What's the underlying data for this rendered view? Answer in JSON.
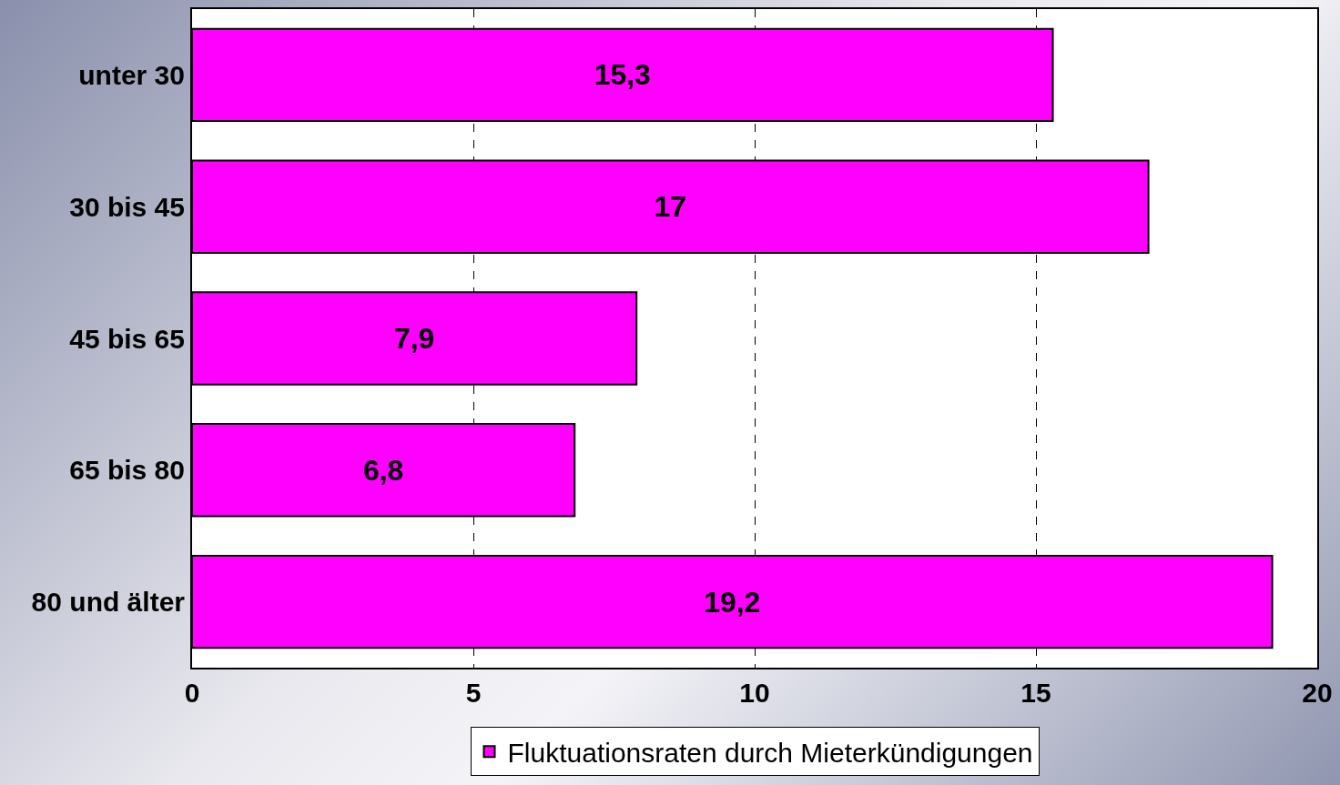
{
  "chart_data": {
    "type": "bar",
    "orientation": "horizontal",
    "categories": [
      "unter 30",
      "30 bis 45",
      "45 bis 65",
      "65 bis 80",
      "80 und älter"
    ],
    "series": [
      {
        "name": "Fluktuationsraten durch Mieterkündigungen",
        "color": "#ff00ff",
        "values": [
          15.3,
          17,
          7.9,
          6.8,
          19.2
        ],
        "value_labels": [
          "15,3",
          "17",
          "7,9",
          "6,8",
          "19,2"
        ]
      }
    ],
    "xlim": [
      0,
      20
    ],
    "xticks": [
      0,
      5,
      10,
      15,
      20
    ],
    "grid": "x",
    "line_style": "dashed",
    "legend": "bottom"
  }
}
